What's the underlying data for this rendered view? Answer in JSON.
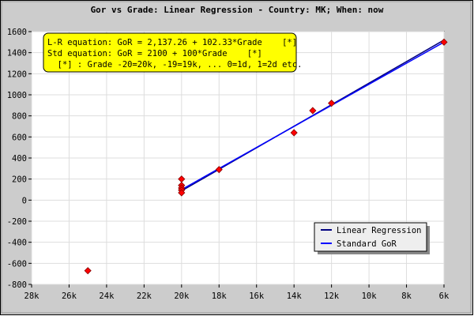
{
  "chart_data": {
    "type": "scatter",
    "title": "Gor vs Grade: Linear Regression - Country: MK; When: now",
    "xlabel": "",
    "ylabel": "",
    "x_axis": {
      "min": 6,
      "max": 28,
      "reversed": true,
      "ticks": [
        28,
        26,
        24,
        22,
        20,
        18,
        16,
        14,
        12,
        10,
        8,
        6
      ],
      "tick_labels": [
        "28k",
        "26k",
        "24k",
        "22k",
        "20k",
        "18k",
        "16k",
        "14k",
        "12k",
        "10k",
        "8k",
        "6k"
      ]
    },
    "y_axis": {
      "min": -800,
      "max": 1600,
      "ticks": [
        -800,
        -600,
        -400,
        -200,
        0,
        200,
        400,
        600,
        800,
        1000,
        1200,
        1400,
        1600
      ],
      "tick_labels": [
        "-800",
        "-600",
        "-400",
        "-200",
        "0",
        "200",
        "400",
        "600",
        "800",
        "1000",
        "1200",
        "1400",
        "1600"
      ]
    },
    "grid": true,
    "points": [
      {
        "grade": "25k",
        "x": 25,
        "y": -670
      },
      {
        "grade": "20k",
        "x": 20,
        "y": 200
      },
      {
        "grade": "20k",
        "x": 20,
        "y": 140
      },
      {
        "grade": "20k",
        "x": 20,
        "y": 115
      },
      {
        "grade": "20k",
        "x": 20,
        "y": 95
      },
      {
        "grade": "20k",
        "x": 20,
        "y": 70
      },
      {
        "grade": "18k",
        "x": 18,
        "y": 290
      },
      {
        "grade": "14k",
        "x": 14,
        "y": 640
      },
      {
        "grade": "13k",
        "x": 13,
        "y": 850
      },
      {
        "grade": "12k",
        "x": 12,
        "y": 920
      },
      {
        "grade": "6k",
        "x": 6,
        "y": 1500
      }
    ],
    "point_color": "#ff0000",
    "series": [
      {
        "name": "Linear Regression",
        "color": "#000080",
        "x": [
          20,
          6
        ],
        "y": [
          88,
          1520
        ]
      },
      {
        "name": "Standard GoR",
        "color": "#0000ff",
        "x": [
          20,
          6
        ],
        "y": [
          100,
          1500
        ]
      }
    ],
    "legend_position": "bottom-right",
    "annotation": {
      "lines": [
        "L-R equation: GoR = 2,137.26 + 102.33*Grade    [*]",
        "Std equation: GoR = 2100 + 100*Grade    [*]",
        "  [*] : Grade -20=20k, -19=19k, ... 0=1d, 1=2d etc."
      ],
      "background": "#ffff00"
    }
  }
}
